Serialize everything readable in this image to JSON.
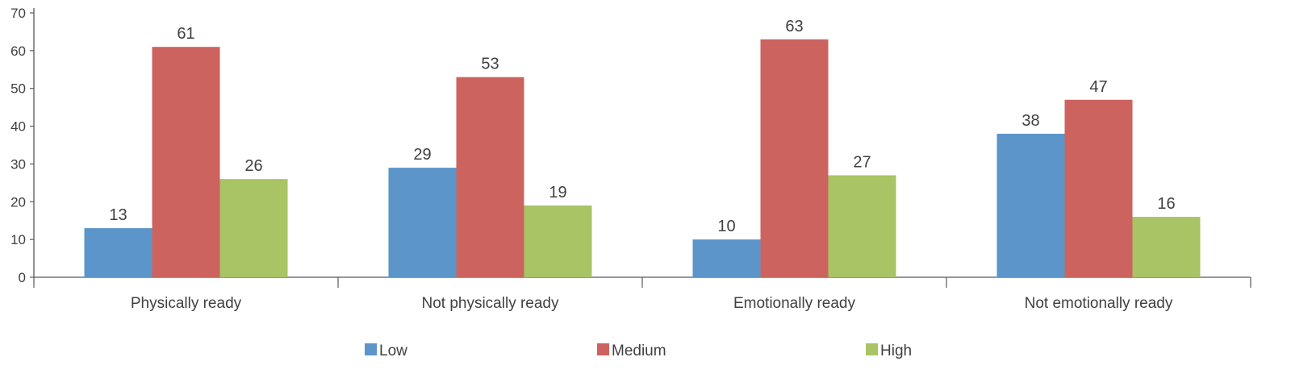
{
  "chart_data": {
    "type": "bar",
    "title": "",
    "xlabel": "",
    "ylabel": "",
    "ylim": [
      0,
      70
    ],
    "yticks": [
      0,
      10,
      20,
      30,
      40,
      50,
      60,
      70
    ],
    "grid": false,
    "legend_position": "bottom",
    "categories": [
      "Physically ready",
      "Not physically ready",
      "Emotionally ready",
      "Not emotionally ready"
    ],
    "series": [
      {
        "name": "Low",
        "color": "#5b95ca",
        "values": [
          13,
          29,
          10,
          38
        ]
      },
      {
        "name": "Medium",
        "color": "#cd635e",
        "values": [
          61,
          53,
          63,
          47
        ]
      },
      {
        "name": "High",
        "color": "#a8c464",
        "values": [
          26,
          19,
          27,
          16
        ]
      }
    ],
    "axis_color": "#595959"
  }
}
